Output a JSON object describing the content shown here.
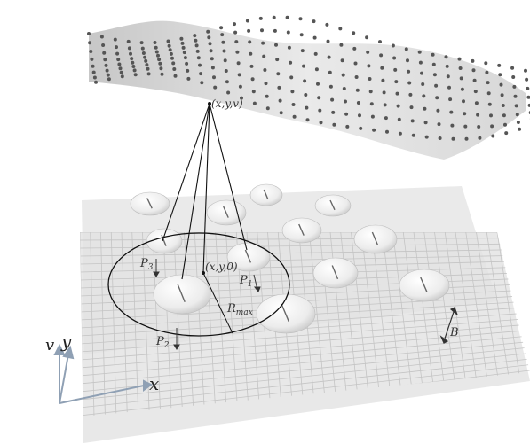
{
  "labels": {
    "surface_point": "(x,y,v)",
    "plane_point": "(x,y,0)",
    "p1": "P",
    "p1_sub": "1",
    "p2": "P",
    "p2_sub": "2",
    "p3": "P",
    "p3_sub": "3",
    "rmax": "R",
    "rmax_sub": "max",
    "bump_height": "B",
    "axis_x": "x",
    "axis_y": "y",
    "axis_v": "v"
  },
  "colors": {
    "plane": "#d6d6d6",
    "grid": "#c4c4c4",
    "surface": "#d9d9d9",
    "dots": "#555555",
    "lines": "#111111",
    "bump": "#f2f2f2",
    "axis": "#8fa0b4"
  }
}
